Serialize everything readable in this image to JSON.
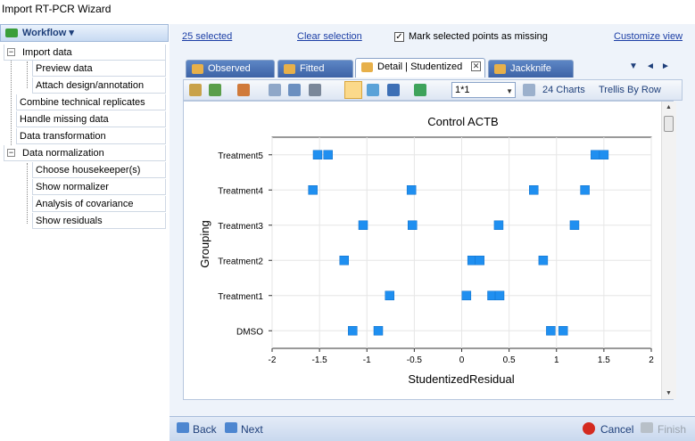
{
  "window": {
    "title": "Import RT-PCR Wizard"
  },
  "sidebar": {
    "header": "Workflow ▾",
    "items": [
      {
        "label": "Import data",
        "expander": "−"
      },
      {
        "label": "Preview data"
      },
      {
        "label": "Attach design/annotation"
      },
      {
        "label": "Combine technical replicates"
      },
      {
        "label": "Handle missing data"
      },
      {
        "label": "Data transformation"
      },
      {
        "label": "Data normalization",
        "expander": "−"
      },
      {
        "label": "Choose housekeeper(s)"
      },
      {
        "label": "Show normalizer"
      },
      {
        "label": "Analysis of covariance"
      },
      {
        "label": "Show residuals"
      }
    ]
  },
  "topbar": {
    "selected": "25 selected",
    "clear": "Clear selection",
    "mark_missing": "Mark selected points as missing",
    "mark_missing_checked": "✓",
    "customize": "Customize view"
  },
  "tabs": [
    {
      "label": "Observed"
    },
    {
      "label": "Fitted"
    },
    {
      "label": "Detail | Studentized",
      "close": "✕"
    },
    {
      "label": "Jackknife"
    }
  ],
  "tabnav": {
    "menu": "▼",
    "prev": "◄",
    "next": "►"
  },
  "toolbar": {
    "layout_value": "1*1",
    "combo_arrow": "▼",
    "charts_label": "24 Charts",
    "trellis_label": "Trellis By Row"
  },
  "scroll": {
    "up": "▲",
    "down": "▼"
  },
  "chart_data": {
    "type": "scatter",
    "title": "Control ACTB",
    "xlabel": "StudentizedResidual",
    "ylabel": "Grouping",
    "xlim": [
      -2,
      2
    ],
    "xticks": [
      "-2",
      "-1.5",
      "-1",
      "-0.5",
      "0",
      "0.5",
      "1",
      "1.5",
      "2"
    ],
    "categories": [
      "DMSO",
      "Treatment1",
      "Treatment2",
      "Treatment3",
      "Treatment4",
      "Treatment5"
    ],
    "grid": true,
    "marker_color": "#1f8ff0",
    "series": [
      {
        "category": "Treatment5",
        "values": [
          -1.52,
          -1.41,
          1.41,
          1.5
        ]
      },
      {
        "category": "Treatment4",
        "values": [
          -1.57,
          -0.53,
          0.76,
          1.3
        ]
      },
      {
        "category": "Treatment3",
        "values": [
          -1.04,
          -0.52,
          0.39,
          1.19
        ]
      },
      {
        "category": "Treatment2",
        "values": [
          -1.24,
          0.11,
          0.19,
          0.86
        ]
      },
      {
        "category": "Treatment1",
        "values": [
          -0.76,
          0.05,
          0.32,
          0.4
        ]
      },
      {
        "category": "DMSO",
        "values": [
          -1.15,
          -0.88,
          0.94,
          1.07
        ]
      }
    ]
  },
  "bottom": {
    "back": "Back",
    "next": "Next",
    "cancel": "Cancel",
    "finish": "Finish"
  }
}
